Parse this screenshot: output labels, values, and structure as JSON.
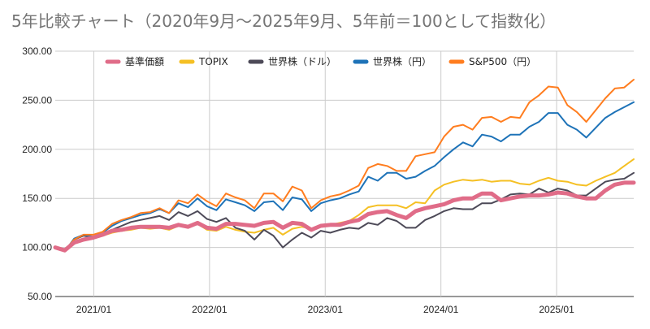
{
  "chart_data": {
    "type": "line",
    "title": "5年比較チャート（2020年9月〜2025年9月、5年前＝100として指数化）",
    "ylim": [
      50,
      300
    ],
    "yticks": [
      "50.00",
      "100.00",
      "150.00",
      "200.00",
      "250.00",
      "300.00"
    ],
    "xticks": [
      "2021/01",
      "2022/01",
      "2023/01",
      "2024/01",
      "2025/01"
    ],
    "x_start": "2020-09",
    "x_end": "2025-09",
    "legend_position": "top",
    "grid": true,
    "series": [
      {
        "name": "基準価額",
        "color": "#e06c88",
        "values": [
          100,
          97,
          105,
          108,
          110,
          113,
          117,
          118,
          120,
          121,
          121,
          121,
          120,
          123,
          121,
          125,
          120,
          119,
          124,
          124,
          123,
          122,
          125,
          126,
          120,
          125,
          124,
          118,
          122,
          123,
          123,
          126,
          128,
          134,
          136,
          137,
          133,
          130,
          137,
          140,
          142,
          144,
          148,
          150,
          150,
          155,
          155,
          148,
          150,
          152,
          153,
          153,
          154,
          156,
          155,
          152,
          150,
          150,
          158,
          164,
          166,
          166
        ]
      },
      {
        "name": "TOPIX",
        "color": "#f5c024",
        "values": [
          100,
          97,
          104,
          107,
          110,
          112,
          115,
          117,
          118,
          120,
          119,
          120,
          118,
          122,
          120,
          124,
          118,
          117,
          121,
          118,
          116,
          115,
          118,
          120,
          113,
          119,
          121,
          119,
          122,
          123,
          125,
          127,
          133,
          141,
          143,
          143,
          143,
          140,
          146,
          145,
          158,
          164,
          167,
          169,
          168,
          169,
          167,
          168,
          168,
          165,
          164,
          168,
          171,
          168,
          167,
          164,
          163,
          168,
          172,
          176,
          183,
          190
        ]
      },
      {
        "name": "世界株（ドル）",
        "color": "#4d4a58",
        "values": [
          100,
          96,
          108,
          112,
          110,
          113,
          118,
          122,
          126,
          128,
          130,
          132,
          128,
          136,
          132,
          137,
          129,
          126,
          130,
          120,
          117,
          108,
          118,
          112,
          100,
          108,
          115,
          110,
          117,
          115,
          118,
          120,
          119,
          125,
          123,
          130,
          127,
          120,
          120,
          128,
          132,
          137,
          140,
          139,
          139,
          145,
          145,
          149,
          154,
          155,
          154,
          160,
          156,
          160,
          158,
          153,
          153,
          160,
          167,
          169,
          170,
          176
        ]
      },
      {
        "name": "世界株（円）",
        "color": "#1e73b8",
        "values": [
          100,
          96,
          109,
          113,
          111,
          115,
          122,
          127,
          130,
          133,
          135,
          139,
          135,
          145,
          141,
          150,
          142,
          138,
          149,
          146,
          143,
          137,
          146,
          147,
          138,
          151,
          149,
          137,
          145,
          148,
          150,
          154,
          157,
          172,
          168,
          176,
          176,
          170,
          172,
          178,
          183,
          192,
          200,
          207,
          203,
          215,
          213,
          208,
          215,
          215,
          223,
          228,
          237,
          237,
          225,
          220,
          212,
          222,
          232,
          238,
          243,
          248
        ]
      },
      {
        "name": "S&P500（円）",
        "color": "#ff7d1f",
        "values": [
          100,
          97,
          108,
          113,
          113,
          116,
          124,
          128,
          131,
          135,
          136,
          140,
          135,
          148,
          145,
          154,
          147,
          142,
          155,
          151,
          148,
          140,
          155,
          155,
          147,
          162,
          158,
          140,
          148,
          152,
          154,
          158,
          163,
          181,
          185,
          183,
          178,
          178,
          193,
          195,
          197,
          213,
          223,
          225,
          220,
          232,
          233,
          228,
          233,
          232,
          248,
          255,
          264,
          263,
          245,
          238,
          228,
          240,
          252,
          262,
          263,
          271
        ]
      }
    ]
  }
}
